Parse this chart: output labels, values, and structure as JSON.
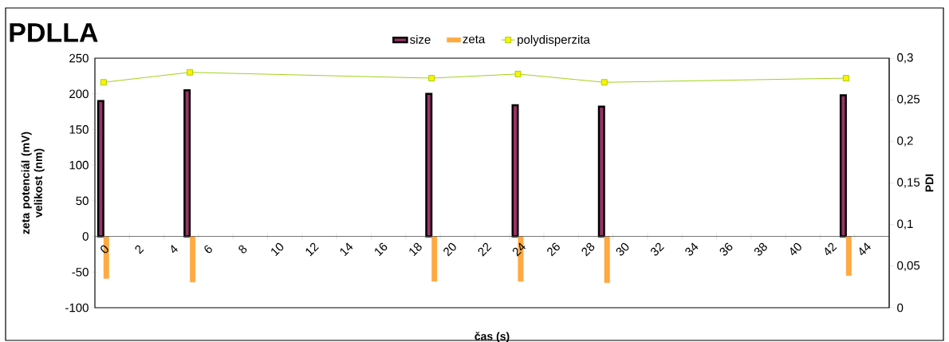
{
  "chart_data": {
    "type": "bar",
    "title": "PDLLA",
    "xlabel": "čas (s)",
    "ylabel": "zeta potenciál (mV) velikost (nm)",
    "y2label": "PDI",
    "x": [
      0.5,
      5.5,
      19.5,
      24.5,
      29.5,
      43.5
    ],
    "xlim": [
      0,
      46
    ],
    "xticks": [
      0,
      2,
      4,
      6,
      8,
      10,
      12,
      14,
      16,
      18,
      20,
      22,
      24,
      26,
      28,
      30,
      32,
      34,
      36,
      38,
      40,
      42,
      44
    ],
    "ylim": [
      -100,
      250
    ],
    "yticks": [
      -100,
      -50,
      0,
      50,
      100,
      150,
      200,
      250
    ],
    "y2lim": [
      0,
      0.3
    ],
    "y2ticks": [
      {
        "value": 0,
        "label": "0"
      },
      {
        "value": 0.05,
        "label": "0,05"
      },
      {
        "value": 0.1,
        "label": "0,1"
      },
      {
        "value": 0.15,
        "label": "0,15"
      },
      {
        "value": 0.2,
        "label": "0,2"
      },
      {
        "value": 0.25,
        "label": "0,25"
      },
      {
        "value": 0.3,
        "label": "0,3"
      }
    ],
    "legend": "top",
    "series": [
      {
        "name": "size",
        "color": "#993366",
        "values": [
          190,
          205,
          200,
          184,
          182,
          198
        ]
      },
      {
        "name": "zeta",
        "color": "#ffa940",
        "values": [
          -59,
          -64,
          -63,
          -63,
          -65,
          -55
        ]
      },
      {
        "name": "polydisperzita",
        "type": "line",
        "axis": "y2",
        "marker": "square",
        "color": "#99cc00",
        "values": [
          0.271,
          0.283,
          0.276,
          0.281,
          0.271,
          0.276
        ]
      }
    ]
  }
}
